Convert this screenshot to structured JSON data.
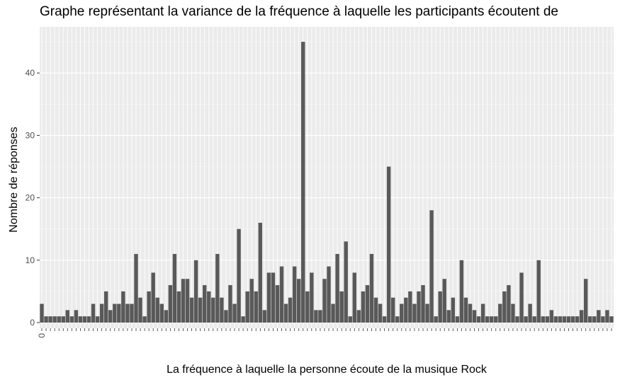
{
  "chart_data": {
    "type": "bar",
    "title": "Graphe représentant la variance de la fréquence à laquelle les participants écoutent de",
    "xlabel": "La fréquence à laquelle la personne écoute de la musique Rock",
    "ylabel": "Nombre de réponses",
    "ylim": [
      0,
      47
    ],
    "yticks": [
      0,
      10,
      20,
      30,
      40
    ],
    "grid": true,
    "x_first_label": "0",
    "values": [
      3,
      1,
      1,
      1,
      1,
      1,
      2,
      1,
      2,
      1,
      1,
      1,
      3,
      1,
      3,
      5,
      2,
      3,
      3,
      5,
      3,
      3,
      11,
      4,
      1,
      5,
      8,
      4,
      3,
      2,
      6,
      11,
      5,
      7,
      7,
      4,
      10,
      4,
      6,
      5,
      4,
      11,
      4,
      2,
      6,
      3,
      15,
      1,
      5,
      7,
      5,
      16,
      2,
      8,
      8,
      6,
      9,
      3,
      4,
      9,
      7,
      45,
      5,
      8,
      2,
      2,
      7,
      9,
      3,
      11,
      5,
      13,
      1,
      8,
      2,
      5,
      6,
      11,
      4,
      3,
      1,
      25,
      4,
      1,
      3,
      4,
      5,
      3,
      5,
      6,
      3,
      18,
      1,
      5,
      7,
      2,
      4,
      1,
      10,
      4,
      3,
      2,
      1,
      3,
      1,
      1,
      1,
      3,
      5,
      6,
      3,
      1,
      8,
      1,
      3,
      1,
      10,
      1,
      1,
      2,
      1,
      1,
      1,
      1,
      1,
      1,
      2,
      7,
      1,
      1,
      2,
      1,
      2,
      1
    ]
  }
}
